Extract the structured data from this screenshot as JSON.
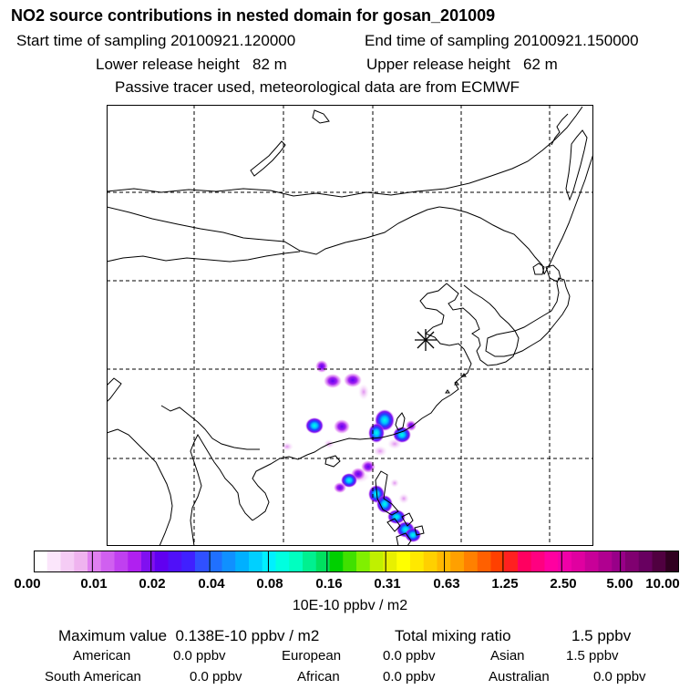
{
  "header": {
    "title": "NO2 source contributions in nested domain for gosan_201009",
    "start_label": "Start time of sampling 20100921.120000",
    "end_label": "End time of sampling 20100921.150000",
    "lower_label": "Lower release height   82 m",
    "upper_label": "Upper release height   62 m",
    "note": "Passive tracer used, meteorological data are from ECMWF"
  },
  "map": {
    "receptor_symbol": "asterisk",
    "colors": {
      "frame": "#000000",
      "coast": "#000000",
      "grid": "#000000"
    }
  },
  "legend": {
    "ticks": [
      "0.00",
      "0.01",
      "0.02",
      "0.04",
      "0.08",
      "0.16",
      "0.31",
      "0.63",
      "1.25",
      "2.50",
      "5.00",
      "10.00"
    ],
    "unit": "10E-10 ppbv / m2",
    "colors": [
      "#ffffff",
      "#fbe6fb",
      "#f5ccf5",
      "#efb3ef",
      "#e080f0",
      "#d060f0",
      "#c040f0",
      "#b020f0",
      "#8010f0",
      "#6000f0",
      "#5010f8",
      "#4020ff",
      "#3050ff",
      "#2070ff",
      "#1090ff",
      "#00b0ff",
      "#00d0ff",
      "#00f0ff",
      "#00ffe0",
      "#00ffc0",
      "#00f090",
      "#00e060",
      "#00d000",
      "#40e000",
      "#80f000",
      "#c0f000",
      "#e8f000",
      "#ffff00",
      "#ffe800",
      "#ffd000",
      "#ffb800",
      "#ffa000",
      "#ff8000",
      "#ff6000",
      "#ff4000",
      "#ff2020",
      "#ff0060",
      "#ff0080",
      "#ff00a0",
      "#f000a8",
      "#e000a0",
      "#c80098",
      "#b00090",
      "#980088",
      "#800070",
      "#680060",
      "#500040",
      "#300020"
    ]
  },
  "footer": {
    "max_label": "Maximum value  0.138E-10 ppbv / m2",
    "total_label": "Total mixing ratio",
    "total_value": "1.5 ppbv",
    "sources": [
      {
        "name": "American",
        "value": "0.0 ppbv"
      },
      {
        "name": "European",
        "value": "0.0 ppbv"
      },
      {
        "name": "Asian",
        "value": "1.5 ppbv"
      },
      {
        "name": "South American",
        "value": "0.0 ppbv"
      },
      {
        "name": "African",
        "value": "0.0 ppbv"
      },
      {
        "name": "Australian",
        "value": "0.0 ppbv"
      }
    ]
  }
}
